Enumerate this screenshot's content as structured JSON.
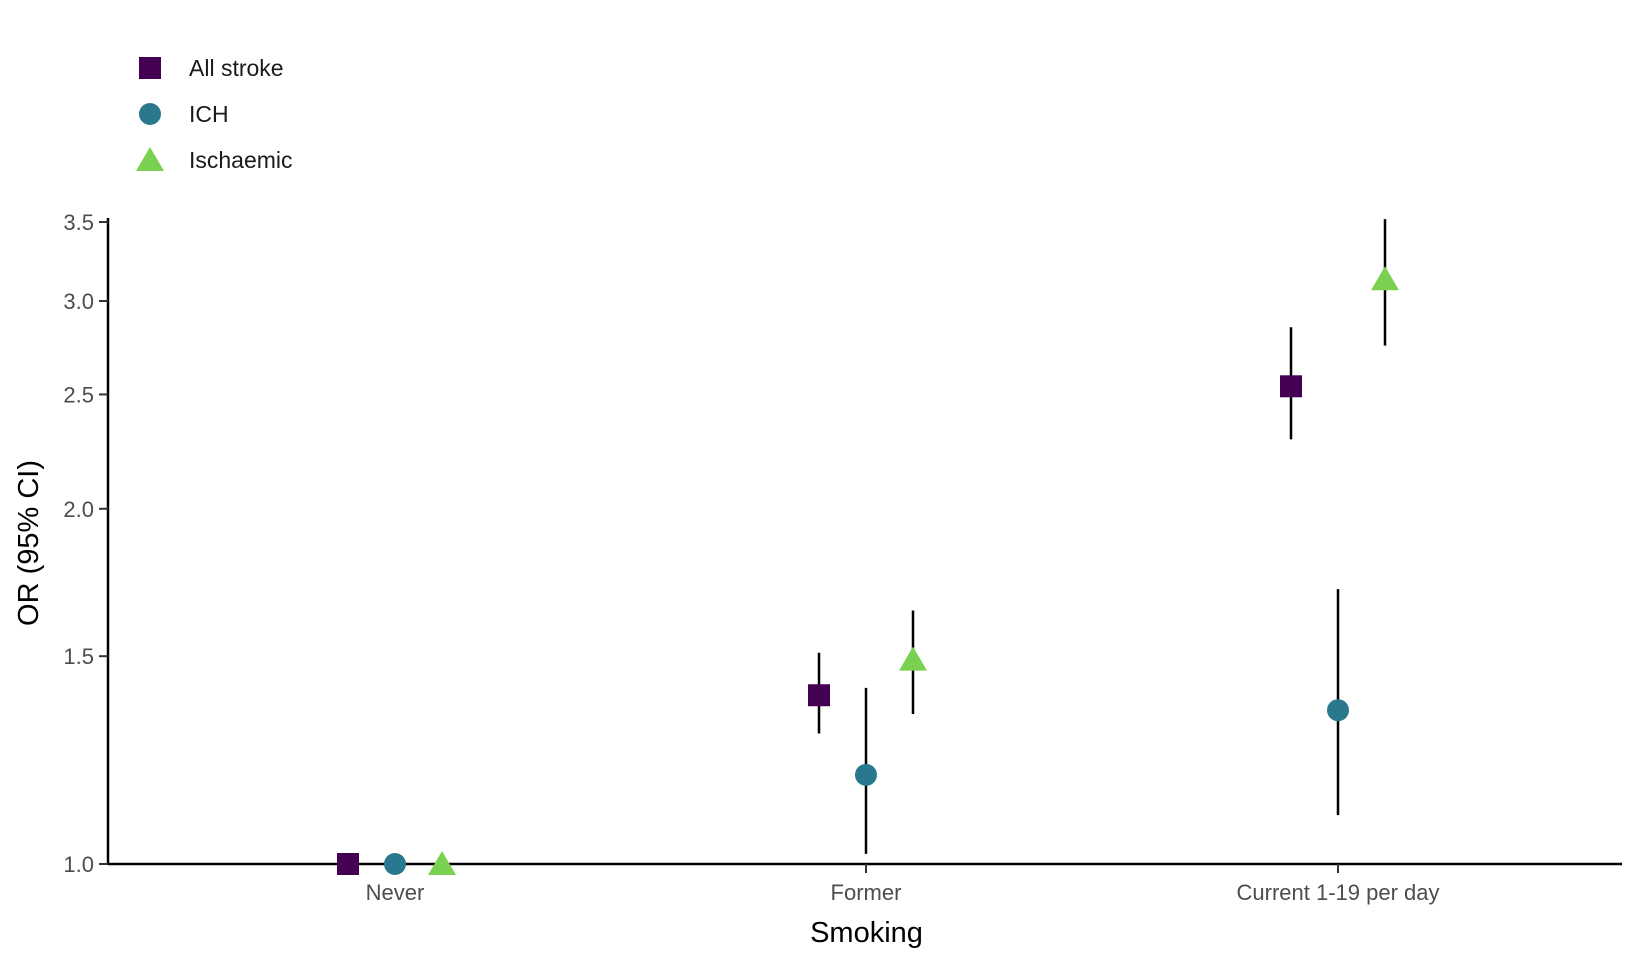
{
  "chart_data": {
    "type": "scatter",
    "subtype": "point-range (odds ratio with 95% CI), log-scaled y axis",
    "xlabel": "Smoking",
    "ylabel": "OR (95% CI)",
    "categories": [
      "Never",
      "Former",
      "Current 1-19 per day"
    ],
    "yscale": "log",
    "ylim": [
      1.0,
      3.5
    ],
    "yticks": [
      1.0,
      1.5,
      2.0,
      2.5,
      3.0,
      3.5
    ],
    "ytick_labels": [
      "1.0",
      "1.5",
      "2.0",
      "2.5",
      "3.0",
      "3.5"
    ],
    "grid": false,
    "legend_position": "top-left",
    "series": [
      {
        "name": "All stroke",
        "marker": "square",
        "color": "#440154",
        "values": [
          1.0,
          1.39,
          2.54
        ],
        "lower": [
          1.0,
          1.29,
          2.29
        ],
        "upper": [
          1.0,
          1.51,
          2.85
        ]
      },
      {
        "name": "ICH",
        "marker": "circle",
        "color": "#2A788E",
        "values": [
          1.0,
          1.19,
          1.35
        ],
        "lower": [
          1.0,
          1.02,
          1.1
        ],
        "upper": [
          1.0,
          1.41,
          1.71
        ]
      },
      {
        "name": "Ischaemic",
        "marker": "triangle",
        "color": "#7AD151",
        "values": [
          1.0,
          1.49,
          3.13
        ],
        "lower": [
          1.0,
          1.34,
          2.75
        ],
        "upper": [
          1.0,
          1.64,
          3.52
        ]
      }
    ]
  }
}
